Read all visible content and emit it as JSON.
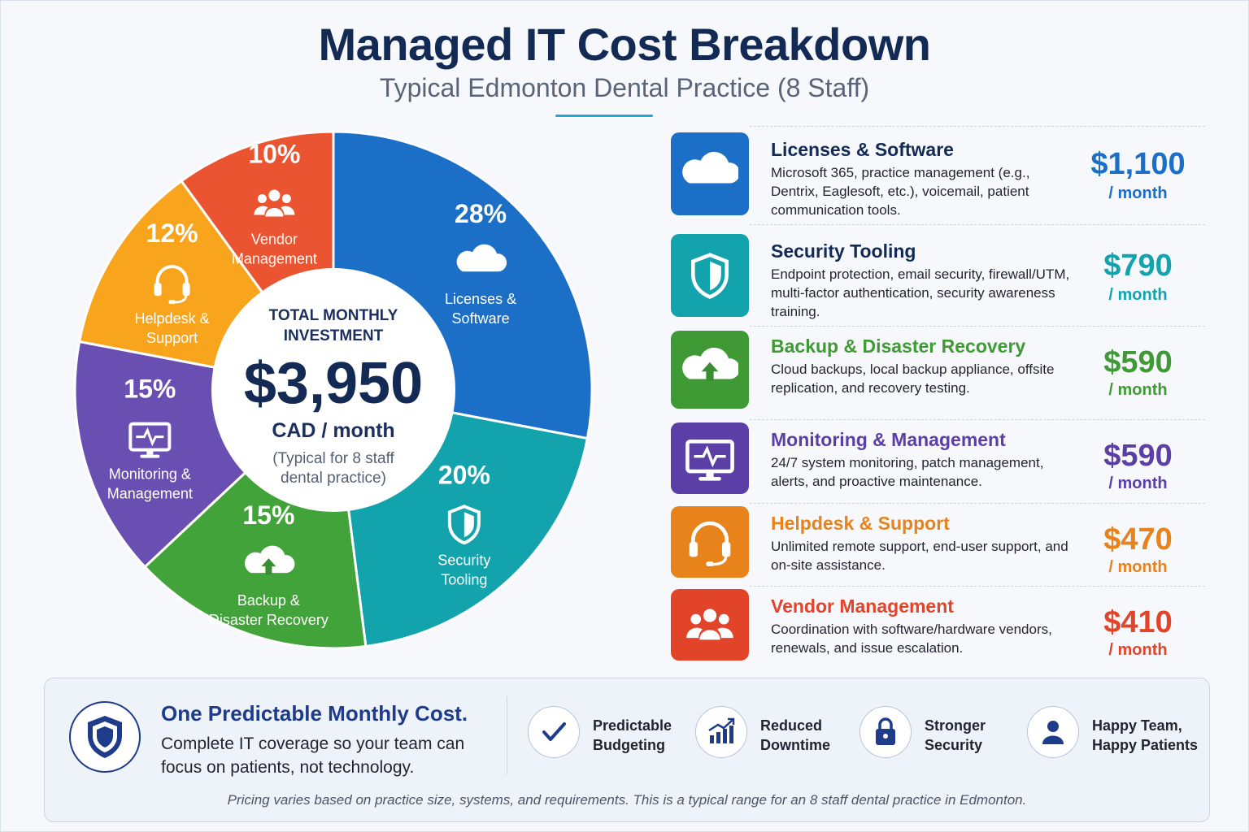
{
  "header": {
    "title": "Managed IT Cost Breakdown",
    "subtitle": "Typical Edmonton Dental Practice (8 Staff)"
  },
  "chart_data": {
    "type": "pie",
    "style": "donut",
    "slices": [
      {
        "pct_label": "28%",
        "value": 28,
        "label_lines": [
          "Licenses &",
          "Software"
        ],
        "color": "#1c6fc6",
        "icon": "cloud-icon"
      },
      {
        "pct_label": "20%",
        "value": 20,
        "label_lines": [
          "Security",
          "Tooling"
        ],
        "color": "#13a3ad",
        "icon": "shield-icon"
      },
      {
        "pct_label": "15%",
        "value": 15,
        "label_lines": [
          "Backup &",
          "Disaster Recovery"
        ],
        "color": "#42a33a",
        "icon": "cloud-upload-icon"
      },
      {
        "pct_label": "15%",
        "value": 15,
        "label_lines": [
          "Monitoring &",
          "Management"
        ],
        "color": "#6a4fb3",
        "icon": "monitor-pulse-icon"
      },
      {
        "pct_label": "12%",
        "value": 12,
        "label_lines": [
          "Helpdesk &",
          "Support"
        ],
        "color": "#f8a41c",
        "icon": "headset-icon"
      },
      {
        "pct_label": "10%",
        "value": 10,
        "label_lines": [
          "Vendor",
          "Management"
        ],
        "color": "#eb5430",
        "icon": "people-icon"
      }
    ],
    "center": {
      "heading_lines": [
        "TOTAL MONTHLY",
        "INVESTMENT"
      ],
      "total": "$3,950",
      "unit": "CAD / month",
      "note_lines": [
        "(Typical for 8 staff",
        "dental practice)"
      ]
    }
  },
  "breakdown": [
    {
      "title": "Licenses & Software",
      "desc": "Microsoft 365, practice management (e.g., Dentrix, Eaglesoft, etc.), voicemail, patient communication tools.",
      "price": "$1,100",
      "per": "/ month",
      "color": "#1c6fc6",
      "title_color": "#132a55",
      "icon": "cloud-icon"
    },
    {
      "title": "Security Tooling",
      "desc": "Endpoint protection, email security, firewall/UTM, multi-factor authentication, security awareness training.",
      "price": "$790",
      "per": "/ month",
      "color": "#13a3ad",
      "title_color": "#132a55",
      "icon": "shield-icon"
    },
    {
      "title": "Backup & Disaster Recovery",
      "desc": "Cloud backups, local backup appliance, offsite replication, and recovery testing.",
      "price": "$590",
      "per": "/ month",
      "color": "#3f9a36",
      "title_color": "#3f9a36",
      "icon": "cloud-upload-icon"
    },
    {
      "title": "Monitoring & Management",
      "desc": "24/7 system monitoring, patch management, alerts, and proactive maintenance.",
      "price": "$590",
      "per": "/ month",
      "color": "#5b3fa6",
      "title_color": "#5b3fa6",
      "icon": "monitor-pulse-icon"
    },
    {
      "title": "Helpdesk & Support",
      "desc": "Unlimited remote support, end-user support, and on-site assistance.",
      "price": "$470",
      "per": "/ month",
      "color": "#e8821a",
      "title_color": "#e8821a",
      "icon": "headset-icon"
    },
    {
      "title": "Vendor Management",
      "desc": "Coordination with software/hardware vendors, renewals, and issue escalation.",
      "price": "$410",
      "per": "/ month",
      "color": "#e2442a",
      "title_color": "#e2442a",
      "icon": "people-icon"
    }
  ],
  "panel": {
    "heading": "One Predictable Monthly Cost.",
    "text": "Complete IT coverage so your team can focus on patients, not technology.",
    "benefits": [
      {
        "lines": [
          "Predictable",
          "Budgeting"
        ],
        "icon": "checkmark-icon"
      },
      {
        "lines": [
          "Reduced",
          "Downtime"
        ],
        "icon": "bar-chart-up-icon"
      },
      {
        "lines": [
          "Stronger",
          "Security"
        ],
        "icon": "lock-icon"
      },
      {
        "lines": [
          "Happy Team,",
          "Happy Patients"
        ],
        "icon": "person-icon"
      }
    ],
    "footnote": "Pricing varies based on practice size, systems, and requirements. This is a typical range for an 8 staff dental practice in Edmonton."
  },
  "colors": {
    "navy": "#132a55",
    "accent": "#20a7c9"
  }
}
